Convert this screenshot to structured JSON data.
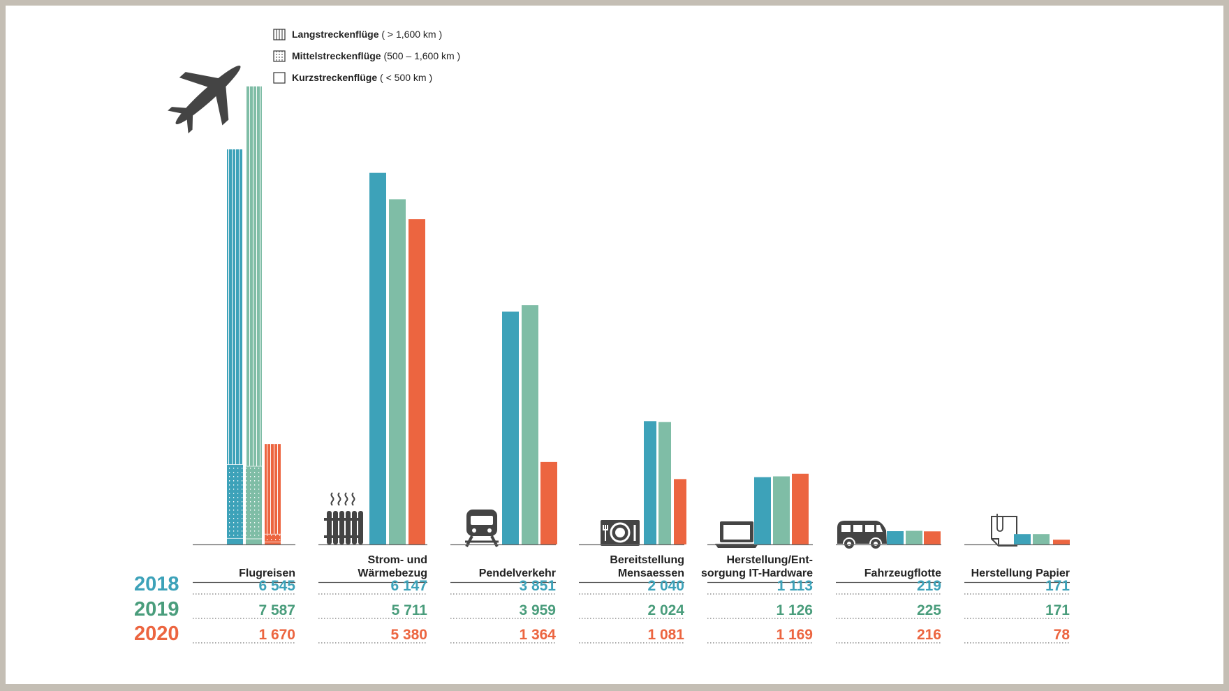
{
  "colors": {
    "y2018": "#3da2b9",
    "y2019": "#7fbda6",
    "y2020": "#ec6540",
    "y2019_num": "#4a9d7c",
    "icon": "#444444"
  },
  "legend": [
    {
      "bold": "Langstreckenflüge",
      "rest": " ( > 1,600 km )",
      "pattern": "vertical"
    },
    {
      "bold": "Mittelstreckenflüge",
      "rest": " (500 – 1,600 km )",
      "pattern": "dotted"
    },
    {
      "bold": "Kurzstreckenflüge",
      "rest": " ( < 500 km )",
      "pattern": "empty"
    }
  ],
  "chart_data": {
    "type": "bar",
    "title": "",
    "xlabel": "",
    "ylabel": "",
    "categories": [
      {
        "lines": [
          "Flugreisen"
        ],
        "icon": "airplane-icon"
      },
      {
        "lines": [
          "Strom- und",
          "Wärmebezug"
        ],
        "icon": "radiator-icon"
      },
      {
        "lines": [
          "Pendelverkehr"
        ],
        "icon": "train-icon"
      },
      {
        "lines": [
          "Bereitstellung",
          "Mensaessen"
        ],
        "icon": "plate-icon"
      },
      {
        "lines": [
          "Herstellung/Ent-",
          "sorgung IT-Hardware"
        ],
        "icon": "laptop-icon"
      },
      {
        "lines": [
          "Fahrzeugflotte"
        ],
        "icon": "van-icon"
      },
      {
        "lines": [
          "Herstellung Papier"
        ],
        "icon": "paper-icon"
      }
    ],
    "series": [
      {
        "name": "2018",
        "values": [
          6545,
          6147,
          3851,
          2040,
          1113,
          219,
          171
        ],
        "labels": [
          "6 545",
          "6 147",
          "3 851",
          "2 040",
          "1 113",
          "219",
          "171"
        ]
      },
      {
        "name": "2019",
        "values": [
          7587,
          5711,
          3959,
          2024,
          1126,
          225,
          171
        ],
        "labels": [
          "7 587",
          "5 711",
          "3 959",
          "2 024",
          "1 126",
          "225",
          "171"
        ]
      },
      {
        "name": "2020",
        "values": [
          1670,
          5380,
          1364,
          1081,
          1169,
          216,
          78
        ],
        "labels": [
          "1 670",
          "5 380",
          "1 364",
          "1 081",
          "1 169",
          "216",
          "78"
        ]
      }
    ],
    "flight_breakdown_estimated": {
      "2018": {
        "long": 5220,
        "medium": 1220,
        "short": 105
      },
      "2019": {
        "long": 6290,
        "medium": 1200,
        "short": 97
      },
      "2020": {
        "long": 1495,
        "medium": 130,
        "short": 45
      }
    },
    "ylim": [
      0,
      7700
    ]
  }
}
